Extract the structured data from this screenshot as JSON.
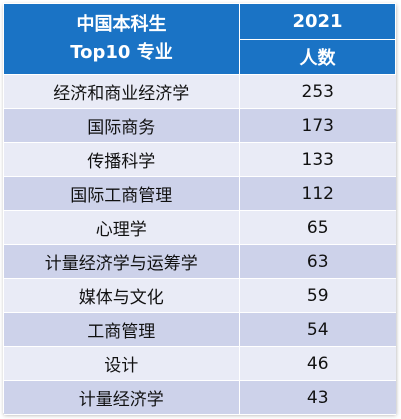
{
  "header": {
    "major_line1": "中国本科生",
    "major_line2": "Top10 专业",
    "year": "2021",
    "count_label": "人数"
  },
  "rows": [
    {
      "major": "经济和商业经济学",
      "count": "253"
    },
    {
      "major": "国际商务",
      "count": "173"
    },
    {
      "major": "传播科学",
      "count": "133"
    },
    {
      "major": "国际工商管理",
      "count": "112"
    },
    {
      "major": "心理学",
      "count": "65"
    },
    {
      "major": "计量经济学与运筹学",
      "count": "63"
    },
    {
      "major": "媒体与文化",
      "count": "59"
    },
    {
      "major": "工商管理",
      "count": "54"
    },
    {
      "major": "设计",
      "count": "46"
    },
    {
      "major": "计量经济学",
      "count": "43"
    }
  ],
  "colors": {
    "header_bg": "#1a73c5",
    "row_light": "#e9ebf6",
    "row_dark": "#cdd2ea"
  }
}
